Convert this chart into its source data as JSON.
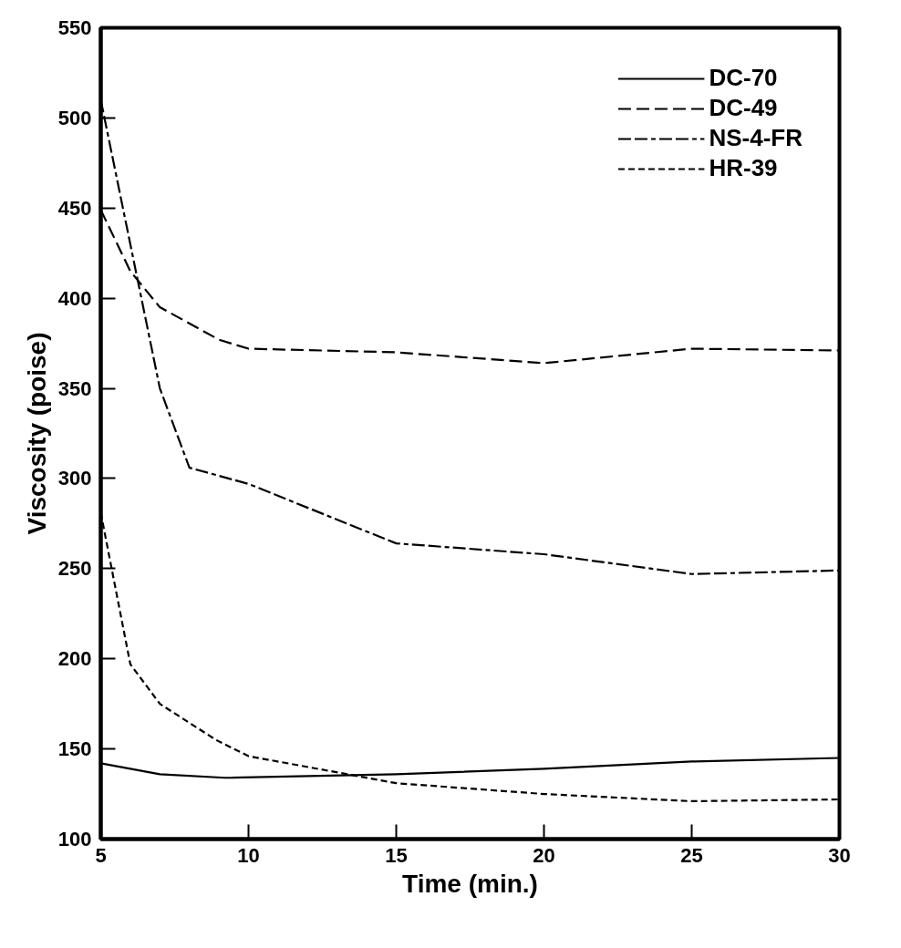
{
  "chart_data": {
    "type": "line",
    "xlabel": "Time (min.)",
    "ylabel": "Viscosity (poise)",
    "series": [
      {
        "name": "DC-70",
        "color": "#000000",
        "line_style": "solid",
        "x": [
          5,
          7,
          9.2,
          15,
          20,
          25,
          30
        ],
        "values": [
          142,
          136,
          134,
          136,
          139,
          143,
          145
        ]
      },
      {
        "name": "DC-49",
        "color": "#000000",
        "line_style": "dashed",
        "x": [
          5,
          6,
          7,
          9,
          10,
          15,
          20,
          25,
          30
        ],
        "values": [
          449,
          415,
          395,
          377,
          372,
          370,
          364,
          372,
          371
        ]
      },
      {
        "name": "NS-4-FR",
        "color": "#000000",
        "line_style": "dashed",
        "x": [
          5,
          7,
          8,
          10,
          15,
          20,
          25,
          30
        ],
        "values": [
          510,
          350,
          306,
          297,
          264,
          258,
          247,
          249
        ]
      },
      {
        "name": "HR-39",
        "color": "#000000",
        "line_style": "dashed",
        "x": [
          5,
          6,
          7,
          8.9,
          10,
          15,
          20,
          25,
          30
        ],
        "values": [
          281,
          197,
          175,
          155,
          146,
          131,
          125,
          121,
          122
        ]
      }
    ],
    "xlim": [
      5,
      30
    ],
    "xticks": [
      5,
      10,
      15,
      20,
      25,
      30
    ],
    "ylim": [
      100,
      550
    ],
    "yticks": [
      100,
      150,
      200,
      250,
      300,
      350,
      400,
      450,
      500,
      550
    ],
    "grid": false,
    "legend": "top right",
    "marker": "none"
  }
}
